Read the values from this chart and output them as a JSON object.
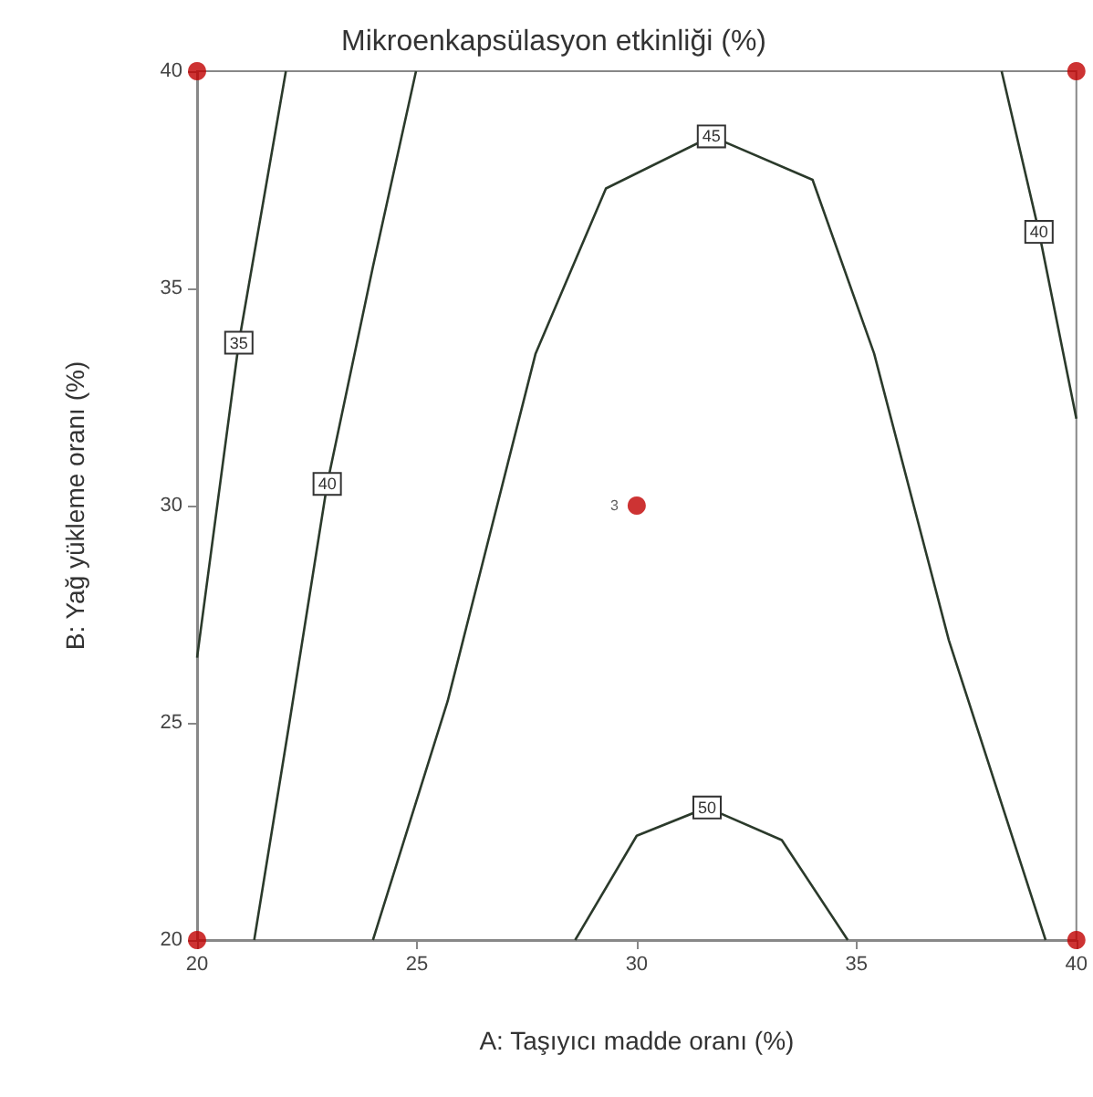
{
  "chart_data": {
    "type": "line",
    "title": "Mikroenkapsülasyon etkinliği (%)",
    "xlabel": "A: Taşıyıcı madde oranı (%)",
    "ylabel": "B: Yağ yükleme oranı (%)",
    "xlim": [
      20,
      40
    ],
    "xticks": [
      20,
      25,
      30,
      35,
      40
    ],
    "ylim": [
      20,
      40
    ],
    "yticks": [
      20,
      25,
      30,
      35,
      40
    ],
    "grid": false,
    "series": [
      {
        "name": "35",
        "color": "#2b3a2b",
        "marker": "none",
        "x": [
          20,
          20.95,
          22.02
        ],
        "values": [
          26.5,
          33.75,
          40
        ]
      },
      {
        "name": "40",
        "color": "#2b3a2b",
        "marker": "none",
        "x": [
          21.3,
          22.1,
          22.96,
          24.0,
          24.98
        ],
        "values": [
          20,
          25,
          30.5,
          35.5,
          40
        ]
      },
      {
        "name": "45",
        "color": "#2b3a2b",
        "marker": "none",
        "x": [
          24.0,
          25.7,
          27.7,
          29.3,
          31.7,
          34.0,
          35.4,
          37.1,
          39.3
        ],
        "values": [
          20,
          25.5,
          33.5,
          37.3,
          38.5,
          37.5,
          33.5,
          26.9,
          20
        ]
      },
      {
        "name": "50",
        "color": "#2b3a2b",
        "marker": "none",
        "x": [
          28.6,
          30.0,
          31.6,
          33.3,
          34.8
        ],
        "values": [
          20,
          22.4,
          23.05,
          22.3,
          20
        ]
      },
      {
        "name": "40",
        "color": "#2b3a2b",
        "marker": "none",
        "x": [
          38.3,
          39.15,
          40
        ],
        "values": [
          40,
          36.3,
          32.0
        ]
      },
      {
        "type": "scatter",
        "color": "#c00000",
        "marker": "circle",
        "x": [
          20,
          20,
          40,
          40,
          30
        ],
        "values": [
          20,
          40,
          20,
          40,
          30
        ]
      }
    ],
    "annotations": [
      {
        "text": "3",
        "x": 30,
        "y": 30
      }
    ]
  }
}
